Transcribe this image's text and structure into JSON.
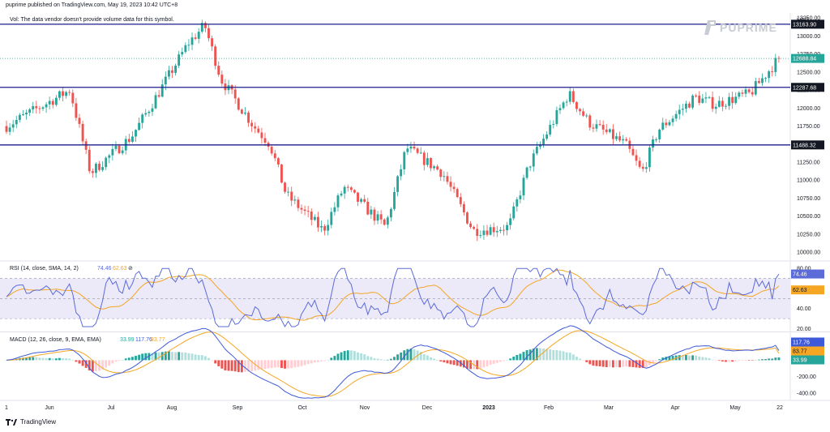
{
  "header": {
    "published": "puprime published on TradingView.com, May 19, 2023 10:42 UTC+8",
    "vol_note": "Vol: The data vendor doesn't provide volume data for this symbol."
  },
  "brand": {
    "logo_text": "PUPRIME",
    "footer": "TradingView"
  },
  "colors": {
    "up": "#26a69a",
    "down": "#ef5350",
    "level": "#1e1e8c",
    "rsi": "#5b6bd8",
    "rsi_ma": "#f5a623",
    "macd": "#3f5ad8",
    "signal": "#f5a623",
    "current_price_tag": "#26a69a",
    "level_tag": "#131722",
    "rsi_band_fill": "#ece9f8",
    "logo": "#c7cbd4"
  },
  "chart_data": [
    {
      "type": "candlestick",
      "currency_label": "USD",
      "x_tick_labels": [
        "1",
        "Jun",
        "Jul",
        "Aug",
        "Sep",
        "Oct",
        "Nov",
        "Dec",
        "2023",
        "Feb",
        "Mar",
        "Apr",
        "May",
        "22"
      ],
      "y_tick_labels": [
        "13250.00",
        "13000.00",
        "12750.00",
        "12500.00",
        "12250.00",
        "12000.00",
        "11750.00",
        "11500.00",
        "11250.00",
        "11000.00",
        "10750.00",
        "10500.00",
        "10250.00",
        "10000.00"
      ],
      "ylim": [
        9900,
        13320
      ],
      "horizontal_levels": [
        13163.9,
        12287.68,
        11488.32
      ],
      "level_labels": [
        "13163.90",
        "12287.68",
        "11488.32"
      ],
      "last_price": 12688.84,
      "last_price_label": "12688.84",
      "close_path": [
        [
          "1",
          11750
        ],
        [
          "Jun",
          12250
        ],
        [
          "Jun",
          11100
        ],
        [
          "Jul",
          11600
        ],
        [
          "Jul",
          12050
        ],
        [
          "Aug",
          12900
        ],
        [
          "Aug",
          13150
        ],
        [
          "Aug",
          12400
        ],
        [
          "Sep",
          11750
        ],
        [
          "Sep",
          11500
        ],
        [
          "Sep",
          10800
        ],
        [
          "Oct",
          10300
        ],
        [
          "Oct",
          10900
        ],
        [
          "Nov",
          10350
        ],
        [
          "Nov",
          11450
        ],
        [
          "Dec",
          11100
        ],
        [
          "Dec",
          10700
        ],
        [
          "Dec",
          10300
        ],
        [
          "2023",
          10350
        ],
        [
          "2023",
          11200
        ],
        [
          "Feb",
          12200
        ],
        [
          "Feb",
          11800
        ],
        [
          "Mar",
          11500
        ],
        [
          "Mar",
          11100
        ],
        [
          "Mar",
          11700
        ],
        [
          "Apr",
          12150
        ],
        [
          "Apr",
          12050
        ],
        [
          "May",
          12200
        ],
        [
          "May",
          12688.84
        ]
      ]
    },
    {
      "type": "line",
      "title": "RSI (14, close, SMA, 14, 2)",
      "values_label": [
        "74.46",
        "62.63"
      ],
      "series": [
        {
          "name": "RSI",
          "last": 74.46
        },
        {
          "name": "RSI-based MA",
          "last": 62.63
        }
      ],
      "y_tick_labels": [
        "80.00",
        "40.00",
        "20.00"
      ],
      "ylim": [
        18,
        85
      ],
      "bands": [
        70,
        50,
        30
      ]
    },
    {
      "type": "line",
      "title": "MACD (12, 26, close, 9, EMA, EMA)",
      "values_label": [
        "33.99",
        "117.76",
        "83.77"
      ],
      "series": [
        {
          "name": "Histogram",
          "last": 33.99
        },
        {
          "name": "MACD",
          "last": 117.76
        },
        {
          "name": "Signal",
          "last": 83.77
        }
      ],
      "y_tick_labels": [
        "-200.00",
        "-400.00"
      ],
      "ylim": [
        -480,
        330
      ]
    }
  ]
}
